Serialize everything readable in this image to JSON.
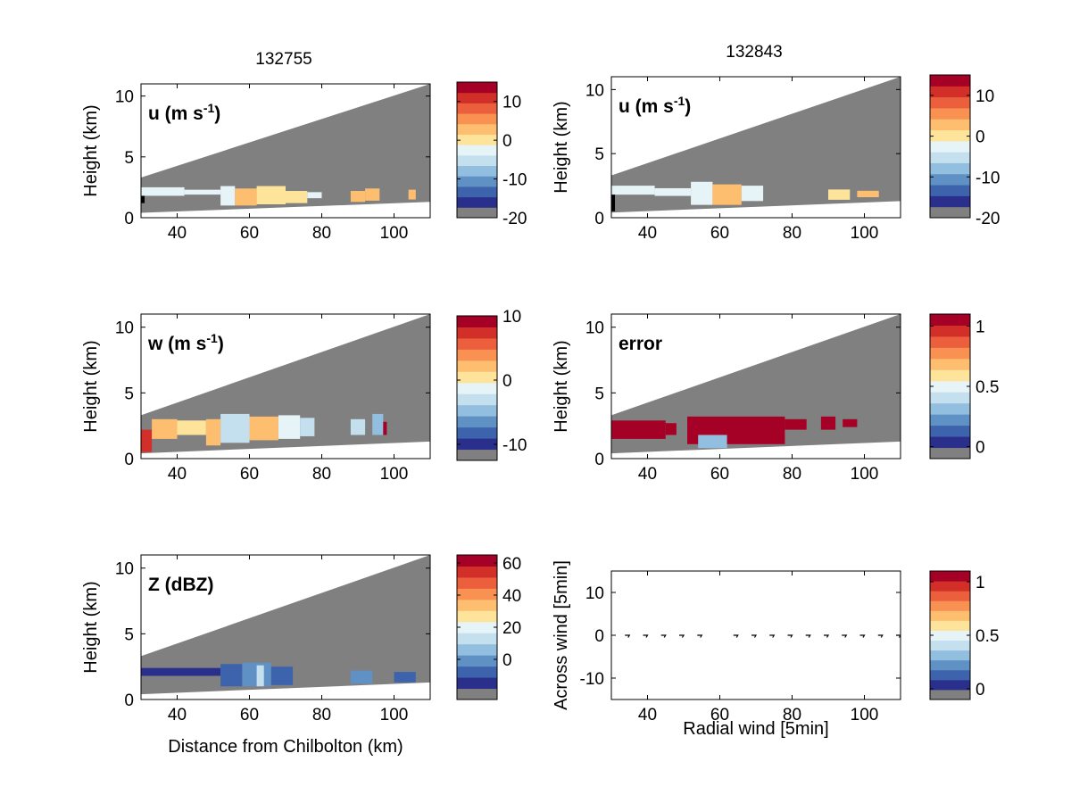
{
  "figure": {
    "titles": [
      "132755",
      "132843"
    ],
    "colors": {
      "masked": "#808080",
      "frame": "#000000",
      "palette": [
        "#2b2f8c",
        "#3e63ad",
        "#5f91c4",
        "#92bfdf",
        "#c4e0ef",
        "#e6f3f7",
        "#fde49a",
        "#fdbe70",
        "#f99153",
        "#ec5f3d",
        "#d12f27",
        "#a50026"
      ]
    }
  },
  "chart_data": [
    {
      "type": "heatmap",
      "panel": "top-left",
      "label": "u (m s",
      "label_sup": "-1",
      "label_tail": ")",
      "title": "132755",
      "xlabel": "",
      "ylabel": "Height (km)",
      "xlim": [
        30,
        110
      ],
      "ylim": [
        0,
        11
      ],
      "xticks": [
        "40",
        "60",
        "80",
        "100"
      ],
      "yticks": [
        "0",
        "5",
        "10"
      ],
      "colorbar": {
        "range": [
          -20,
          15
        ],
        "ticks": [
          -20,
          -10,
          0,
          10
        ],
        "tick_labels": [
          "-20",
          "-10",
          "0",
          "10"
        ],
        "bottom_color": "masked"
      },
      "swath": {
        "bottom": [
          0.4,
          1.3
        ],
        "top": [
          3.3,
          11.0
        ]
      },
      "data_cells": [
        [
          30,
          31,
          1.2,
          2.4,
          12
        ],
        [
          30,
          42,
          1.8,
          2.5,
          5
        ],
        [
          42,
          52,
          1.9,
          2.3,
          5
        ],
        [
          52,
          56,
          1.0,
          2.6,
          5
        ],
        [
          56,
          62,
          1.0,
          2.4,
          7
        ],
        [
          62,
          70,
          1.1,
          2.6,
          6
        ],
        [
          70,
          76,
          1.2,
          2.2,
          6
        ],
        [
          76,
          80,
          1.6,
          2.1,
          5
        ],
        [
          88,
          92,
          1.3,
          2.2,
          7
        ],
        [
          92,
          96,
          1.4,
          2.4,
          7
        ],
        [
          104,
          106,
          1.5,
          2.3,
          7
        ]
      ]
    },
    {
      "type": "heatmap",
      "panel": "top-right",
      "label": "u (m s",
      "label_sup": "-1",
      "label_tail": ")",
      "title": "132843",
      "xlabel": "",
      "ylabel": "Height (km)",
      "xlim": [
        30,
        110
      ],
      "ylim": [
        0,
        11
      ],
      "xticks": [
        "40",
        "60",
        "80",
        "100"
      ],
      "yticks": [
        "0",
        "5",
        "10"
      ],
      "colorbar": {
        "range": [
          -20,
          15
        ],
        "ticks": [
          -20,
          -10,
          0,
          10
        ],
        "tick_labels": [
          "-20",
          "-10",
          "0",
          "10"
        ],
        "bottom_color": "masked"
      },
      "swath": {
        "bottom": [
          0.4,
          1.3
        ],
        "top": [
          3.3,
          11.0
        ]
      },
      "data_cells": [
        [
          30,
          31,
          0.5,
          2.5,
          12
        ],
        [
          30,
          42,
          1.8,
          2.5,
          5
        ],
        [
          42,
          52,
          1.7,
          2.3,
          5
        ],
        [
          52,
          58,
          1.0,
          2.8,
          5
        ],
        [
          58,
          66,
          1.0,
          2.6,
          7
        ],
        [
          66,
          72,
          1.3,
          2.5,
          5
        ],
        [
          90,
          96,
          1.4,
          2.2,
          6
        ],
        [
          98,
          104,
          1.6,
          2.1,
          7
        ]
      ]
    },
    {
      "type": "heatmap",
      "panel": "middle-left",
      "label": "w (m s",
      "label_sup": "-1",
      "label_tail": ")",
      "xlabel": "",
      "ylabel": "Height (km)",
      "xlim": [
        30,
        110
      ],
      "ylim": [
        0,
        11
      ],
      "xticks": [
        "40",
        "60",
        "80",
        "100"
      ],
      "yticks": [
        "0",
        "5",
        "10"
      ],
      "colorbar": {
        "range": [
          -12.5,
          10
        ],
        "ticks": [
          -10,
          0,
          10
        ],
        "tick_labels": [
          "-10",
          "0",
          "10"
        ],
        "bottom_color": "masked"
      },
      "swath": {
        "bottom": [
          0.4,
          1.3
        ],
        "top": [
          3.3,
          11.0
        ]
      },
      "data_cells": [
        [
          30,
          33,
          0.5,
          2.2,
          10
        ],
        [
          33,
          40,
          1.5,
          3.0,
          7
        ],
        [
          40,
          48,
          1.8,
          2.9,
          6
        ],
        [
          48,
          52,
          1.0,
          3.0,
          7
        ],
        [
          52,
          60,
          1.2,
          3.4,
          4
        ],
        [
          60,
          68,
          1.4,
          3.2,
          7
        ],
        [
          68,
          74,
          1.5,
          3.3,
          5
        ],
        [
          74,
          78,
          1.7,
          3.1,
          4
        ],
        [
          88,
          92,
          1.8,
          3.0,
          4
        ],
        [
          94,
          97,
          1.8,
          3.4,
          3
        ],
        [
          97,
          98,
          1.8,
          2.8,
          11
        ]
      ]
    },
    {
      "type": "heatmap",
      "panel": "middle-right",
      "label": "error",
      "xlabel": "",
      "ylabel": "Height (km)",
      "xlim": [
        30,
        110
      ],
      "ylim": [
        0,
        11
      ],
      "xticks": [
        "40",
        "60",
        "80",
        "100"
      ],
      "yticks": [
        "0",
        "5",
        "10"
      ],
      "colorbar": {
        "range": [
          -0.1,
          1.1
        ],
        "ticks": [
          0,
          0.5,
          1
        ],
        "tick_labels": [
          "0",
          "0.5",
          "1"
        ],
        "bottom_color": "masked"
      },
      "swath": {
        "bottom": [
          0.4,
          1.3
        ],
        "top": [
          3.3,
          11.0
        ]
      },
      "data_cells": [
        [
          30,
          45,
          1.5,
          2.9,
          11
        ],
        [
          45,
          48,
          1.8,
          2.7,
          11
        ],
        [
          51,
          78,
          1.1,
          3.2,
          11
        ],
        [
          54,
          62,
          0.8,
          1.8,
          3
        ],
        [
          78,
          84,
          2.2,
          3.0,
          11
        ],
        [
          88,
          92,
          2.2,
          3.2,
          11
        ],
        [
          94,
          98,
          2.4,
          3.0,
          11
        ]
      ]
    },
    {
      "type": "heatmap",
      "panel": "bottom-left",
      "label": "Z (dBZ)",
      "xlabel": "Distance from Chilbolton (km)",
      "ylabel": "Height (km)",
      "xlim": [
        30,
        110
      ],
      "ylim": [
        0,
        11
      ],
      "xticks": [
        "40",
        "60",
        "80",
        "100"
      ],
      "yticks": [
        "0",
        "5",
        "10"
      ],
      "colorbar": {
        "range": [
          -25,
          65
        ],
        "ticks": [
          0,
          20,
          40,
          60
        ],
        "tick_labels": [
          "0",
          "20",
          "40",
          "60"
        ],
        "bottom_color": "masked"
      },
      "swath": {
        "bottom": [
          0.4,
          1.3
        ],
        "top": [
          3.3,
          11.0
        ]
      },
      "data_cells": [
        [
          30,
          52,
          1.8,
          2.4,
          0
        ],
        [
          52,
          58,
          1.0,
          2.7,
          1
        ],
        [
          58,
          66,
          1.0,
          2.8,
          2
        ],
        [
          62,
          64,
          1.0,
          2.6,
          4
        ],
        [
          66,
          72,
          1.1,
          2.5,
          1
        ],
        [
          88,
          94,
          1.2,
          2.2,
          2
        ],
        [
          100,
          106,
          1.3,
          2.1,
          1
        ]
      ]
    },
    {
      "type": "scatter",
      "panel": "bottom-right",
      "xlabel": "Radial wind [5min]",
      "ylabel": "Across wind [5min]",
      "xlim": [
        30,
        110
      ],
      "ylim": [
        -15,
        15
      ],
      "xticks": [
        "40",
        "60",
        "80",
        "100"
      ],
      "yticks": [
        "-10",
        "0",
        "10"
      ],
      "colorbar": {
        "range": [
          -0.1,
          1.1
        ],
        "ticks": [
          0,
          0.5,
          1
        ],
        "tick_labels": [
          "0",
          "0.5",
          "1"
        ],
        "bottom_color": "masked"
      },
      "x": [
        35,
        40,
        45,
        50,
        55,
        65,
        70,
        75,
        80,
        85,
        90,
        95,
        100,
        105,
        110
      ],
      "y": [
        0,
        0,
        0,
        0,
        0,
        0,
        0,
        0,
        0,
        0,
        0,
        0,
        0,
        0,
        0
      ]
    }
  ]
}
